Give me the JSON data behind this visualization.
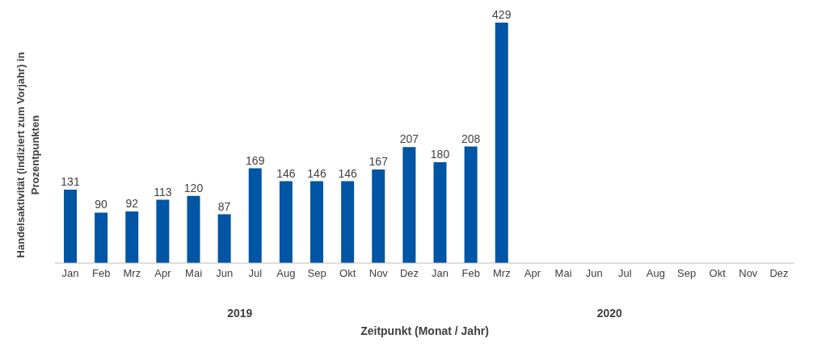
{
  "chart_data": {
    "type": "bar",
    "xlabel": "Zeitpunkt (Monat / Jahr)",
    "ylabel": "Handelsaktivität (indiziert zum Vorjahr) in Prozentpunkten",
    "categories": [
      "Jan",
      "Feb",
      "Mrz",
      "Apr",
      "Mai",
      "Jun",
      "Jul",
      "Aug",
      "Sep",
      "Okt",
      "Nov",
      "Dez",
      "Jan",
      "Feb",
      "Mrz",
      "Apr",
      "Mai",
      "Jun",
      "Jul",
      "Aug",
      "Sep",
      "Okt",
      "Nov",
      "Dez"
    ],
    "values": [
      131,
      90,
      92,
      113,
      120,
      87,
      169,
      146,
      146,
      146,
      167,
      207,
      180,
      208,
      429,
      null,
      null,
      null,
      null,
      null,
      null,
      null,
      null,
      null
    ],
    "color": "#0055a4",
    "data_labels": true,
    "grid": false,
    "annotations": [
      "2019",
      "2020"
    ]
  }
}
